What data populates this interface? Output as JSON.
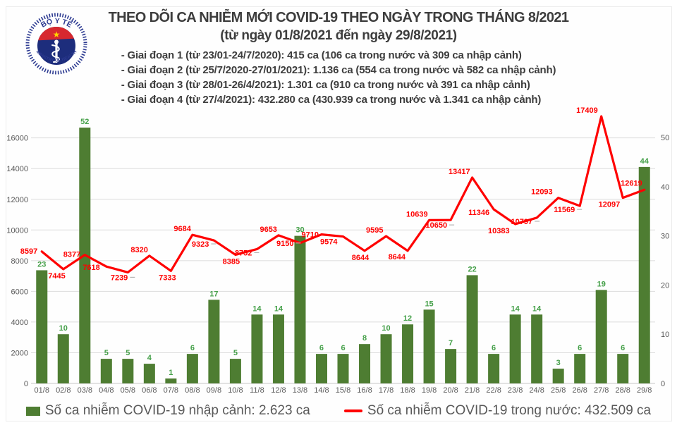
{
  "logo": {
    "top_text": "BỘ Y TẾ",
    "bottom_text": "MINISTRY OF HEALTH"
  },
  "chart_data": {
    "type": "bar+line",
    "title": "THEO DÕI CA NHIỄM MỚI COVID-19 THEO NGÀY TRONG THÁNG 8/2021",
    "subtitle": "(từ ngày 01/8/2021 đến ngày 29/8/2021)",
    "annotations": [
      "- Giai đoạn 1 (từ 23/01-24/7/2020): 415 ca (106 ca trong nước và 309 ca nhập cảnh)",
      "- Giai đoạn 2 (từ 25/7/2020-27/01/2021): 1.136 ca (554 ca trong nước và 582 ca nhập cảnh)",
      "- Giai đoạn 3 (từ 28/01-26/4/2021): 1.301 ca (910 ca trong nước và 391 ca nhập cảnh)",
      "- Giai đoạn 4 (từ 27/4/2021): 432.280 ca (430.939 ca trong nước và 1.341 ca nhập cảnh)"
    ],
    "categories": [
      "01/8",
      "02/8",
      "03/8",
      "04/8",
      "05/8",
      "06/8",
      "07/8",
      "08/8",
      "09/8",
      "10/8",
      "11/8",
      "12/8",
      "13/8",
      "14/8",
      "15/8",
      "16/8",
      "17/8",
      "18/8",
      "19/8",
      "20/8",
      "21/8",
      "22/8",
      "23/8",
      "24/8",
      "25/8",
      "26/8",
      "27/8",
      "28/8",
      "29/8"
    ],
    "series": [
      {
        "name": "Số ca nhiễm COVID-19 nhập cảnh",
        "type": "bar",
        "axis": "right",
        "color": "#4e7d32",
        "label_color": "#45a049",
        "total": "2.623",
        "legend_label": "Số ca nhiễm COVID-19 nhập cảnh: 2.623 ca",
        "values": [
          23,
          10,
          52,
          5,
          5,
          4,
          1,
          6,
          17,
          5,
          14,
          14,
          30,
          6,
          6,
          8,
          10,
          12,
          15,
          7,
          22,
          6,
          14,
          14,
          3,
          6,
          19,
          6,
          44
        ]
      },
      {
        "name": "Số ca nhiễm COVID-19 trong nước",
        "type": "line",
        "axis": "left",
        "color": "#ff0000",
        "label_color": "#ff0000",
        "total": "432.509",
        "legend_label": "Số ca nhiễm COVID-19 trong nước: 432.509 ca",
        "values": [
          8597,
          7445,
          8377,
          7618,
          7239,
          8320,
          7333,
          9684,
          9323,
          8385,
          8752,
          9653,
          9150,
          9710,
          9574,
          8644,
          9595,
          8644,
          10639,
          10650,
          13417,
          11346,
          10383,
          10797,
          12093,
          11569,
          17409,
          12097,
          12619
        ]
      }
    ],
    "left_axis": {
      "min": 0,
      "max": 16000,
      "step": 2000
    },
    "right_axis": {
      "min": 0,
      "max": 50,
      "step": 10
    },
    "gridlines": "horizontal",
    "legend_position": "bottom"
  }
}
